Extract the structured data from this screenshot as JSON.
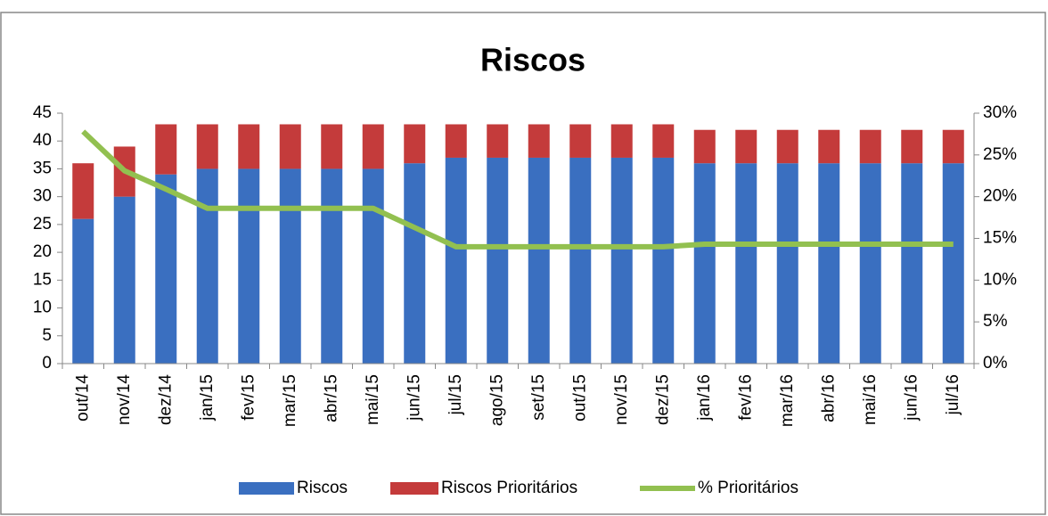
{
  "chart_data": {
    "type": "bar",
    "stacked": true,
    "title": "Riscos",
    "categories": [
      "out/14",
      "nov/14",
      "dez/14",
      "jan/15",
      "fev/15",
      "mar/15",
      "abr/15",
      "mai/15",
      "jun/15",
      "jul/15",
      "ago/15",
      "set/15",
      "out/15",
      "nov/15",
      "dez/15",
      "jan/16",
      "fev/16",
      "mar/16",
      "abr/16",
      "mai/16",
      "jun/16",
      "jul/16"
    ],
    "series": [
      {
        "name": "Riscos",
        "type": "bar",
        "color": "#3a6fc0",
        "values": [
          26,
          30,
          34,
          35,
          35,
          35,
          35,
          35,
          36,
          37,
          37,
          37,
          37,
          37,
          37,
          36,
          36,
          36,
          36,
          36,
          36,
          36
        ]
      },
      {
        "name": "Riscos Prioritários",
        "type": "bar",
        "color": "#c43b3b",
        "values": [
          10,
          9,
          9,
          8,
          8,
          8,
          8,
          8,
          7,
          6,
          6,
          6,
          6,
          6,
          6,
          6,
          6,
          6,
          6,
          6,
          6,
          6
        ]
      },
      {
        "name": "% Prioritários",
        "type": "line",
        "axis": "y2",
        "color": "#92c050",
        "values": [
          27.8,
          23.1,
          20.9,
          18.6,
          18.6,
          18.6,
          18.6,
          18.6,
          16.3,
          14.0,
          14.0,
          14.0,
          14.0,
          14.0,
          14.0,
          14.3,
          14.3,
          14.3,
          14.3,
          14.3,
          14.3,
          14.3
        ]
      }
    ],
    "ylim": [
      0,
      45
    ],
    "yticks": [
      0,
      5,
      10,
      15,
      20,
      25,
      30,
      35,
      40,
      45
    ],
    "y2lim": [
      0,
      30
    ],
    "y2ticks": [
      {
        "value": 0,
        "label": "0%"
      },
      {
        "value": 5,
        "label": "5%"
      },
      {
        "value": 10,
        "label": "10%"
      },
      {
        "value": 15,
        "label": "15%"
      },
      {
        "value": 20,
        "label": "20%"
      },
      {
        "value": 25,
        "label": "25%"
      },
      {
        "value": 30,
        "label": "30%"
      }
    ],
    "legend": "bottom"
  }
}
